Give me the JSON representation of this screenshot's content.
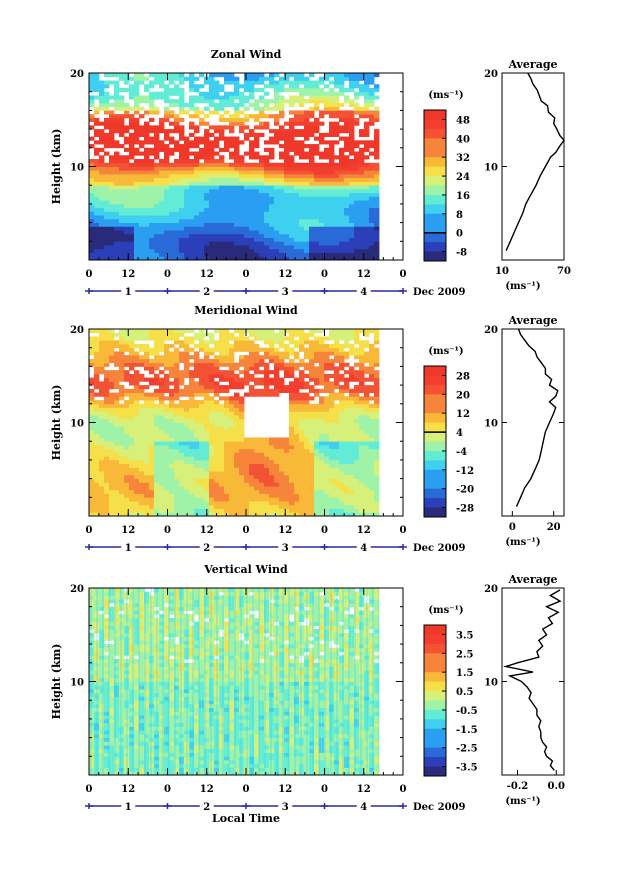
{
  "figure": {
    "xlabel": "Local Time",
    "date_label": "Dec 2009",
    "hour_ticks": [
      "0",
      "12",
      "0",
      "12",
      "0",
      "12",
      "0",
      "12",
      "0"
    ],
    "day_labels": [
      "1",
      "2",
      "3",
      "4"
    ]
  },
  "chart_data": [
    {
      "type": "heatmap",
      "title": "Zonal Wind",
      "ylabel": "Height (km)",
      "ylim": [
        0,
        20
      ],
      "yticks": [
        "10",
        "20"
      ],
      "colorbar_unit": "(ms⁻¹)",
      "colorbar_ticks": [
        "48",
        "40",
        "32",
        "24",
        "16",
        "8",
        "0",
        "-8"
      ],
      "colorbar_range": [
        -12,
        52
      ],
      "average": {
        "title": "Average",
        "xlabel": "(ms⁻¹)",
        "xticks": [
          "10",
          "70"
        ],
        "xlim": [
          10,
          70
        ],
        "ylim": [
          0,
          20
        ],
        "yticks": [
          "10",
          "20"
        ],
        "profile": [
          [
            14,
            1
          ],
          [
            18,
            2
          ],
          [
            22,
            3
          ],
          [
            26,
            4
          ],
          [
            30,
            5
          ],
          [
            33,
            6
          ],
          [
            38,
            7
          ],
          [
            43,
            8
          ],
          [
            47,
            9
          ],
          [
            52,
            10
          ],
          [
            57,
            11
          ],
          [
            62,
            11.5
          ],
          [
            66,
            12.2
          ],
          [
            70,
            12.8
          ],
          [
            66,
            13.3
          ],
          [
            63,
            14
          ],
          [
            60,
            14.6
          ],
          [
            61,
            15.2
          ],
          [
            55,
            15.8
          ],
          [
            54,
            16.5
          ],
          [
            48,
            17
          ],
          [
            46,
            17.6
          ],
          [
            44,
            18.2
          ],
          [
            40,
            18.8
          ],
          [
            38,
            19.4
          ],
          [
            35,
            20
          ]
        ]
      }
    },
    {
      "type": "heatmap",
      "title": "Meridional Wind",
      "ylabel": "Height (km)",
      "ylim": [
        0,
        20
      ],
      "yticks": [
        "10",
        "20"
      ],
      "colorbar_unit": "(ms⁻¹)",
      "colorbar_ticks": [
        "28",
        "20",
        "12",
        "4",
        "-4",
        "-12",
        "-20",
        "-28"
      ],
      "colorbar_range": [
        -32,
        32
      ],
      "average": {
        "title": "Average",
        "xlabel": "(ms⁻¹)",
        "xticks": [
          "0",
          "20"
        ],
        "xlim": [
          -5,
          25
        ],
        "ylim": [
          0,
          20
        ],
        "yticks": [
          "10",
          "20"
        ],
        "profile": [
          [
            2,
            1
          ],
          [
            4,
            2
          ],
          [
            6,
            3
          ],
          [
            9,
            4
          ],
          [
            11,
            5
          ],
          [
            13,
            6
          ],
          [
            14,
            7
          ],
          [
            15,
            8
          ],
          [
            16,
            9
          ],
          [
            18,
            10
          ],
          [
            20,
            11
          ],
          [
            21,
            11.6
          ],
          [
            18,
            12.2
          ],
          [
            21,
            12.8
          ],
          [
            22,
            13.4
          ],
          [
            18,
            14
          ],
          [
            19,
            14.6
          ],
          [
            16,
            15.2
          ],
          [
            16,
            15.8
          ],
          [
            14,
            16.4
          ],
          [
            12,
            17
          ],
          [
            11,
            17.6
          ],
          [
            8,
            18.2
          ],
          [
            6,
            18.8
          ],
          [
            4,
            19.4
          ],
          [
            3,
            20
          ]
        ]
      }
    },
    {
      "type": "heatmap",
      "title": "Vertical Wind",
      "ylabel": "Height (km)",
      "ylim": [
        0,
        20
      ],
      "yticks": [
        "10",
        "20"
      ],
      "colorbar_unit": "(ms⁻¹)",
      "colorbar_ticks": [
        "3.5",
        "2.5",
        "1.5",
        "0.5",
        "-0.5",
        "-1.5",
        "-2.5",
        "-3.5"
      ],
      "colorbar_range": [
        -4,
        4
      ],
      "average": {
        "title": "Average",
        "xlabel": "(ms⁻¹)",
        "xticks": [
          "-0.2",
          "0.0"
        ],
        "xlim": [
          -0.28,
          0.04
        ],
        "ylim": [
          0,
          20
        ],
        "yticks": [
          "10",
          "20"
        ],
        "profile": [
          [
            -0.01,
            0.5
          ],
          [
            -0.03,
            1
          ],
          [
            -0.02,
            1.5
          ],
          [
            -0.05,
            2
          ],
          [
            -0.06,
            2.5
          ],
          [
            -0.05,
            3
          ],
          [
            -0.07,
            3.5
          ],
          [
            -0.08,
            4
          ],
          [
            -0.08,
            4.6
          ],
          [
            -0.09,
            5.2
          ],
          [
            -0.08,
            5.8
          ],
          [
            -0.1,
            6.4
          ],
          [
            -0.1,
            7
          ],
          [
            -0.12,
            7.6
          ],
          [
            -0.14,
            8.2
          ],
          [
            -0.13,
            8.8
          ],
          [
            -0.15,
            9.4
          ],
          [
            -0.18,
            10
          ],
          [
            -0.24,
            10.6
          ],
          [
            -0.12,
            11
          ],
          [
            -0.26,
            11.6
          ],
          [
            -0.2,
            12
          ],
          [
            -0.09,
            12.6
          ],
          [
            -0.1,
            13.2
          ],
          [
            -0.07,
            13.8
          ],
          [
            -0.09,
            14.4
          ],
          [
            -0.05,
            15
          ],
          [
            -0.07,
            15.6
          ],
          [
            -0.02,
            16.2
          ],
          [
            -0.04,
            16.8
          ],
          [
            0.01,
            17.4
          ],
          [
            -0.05,
            18
          ],
          [
            0.02,
            18.6
          ],
          [
            -0.03,
            19.2
          ],
          [
            0.02,
            19.8
          ]
        ]
      }
    }
  ]
}
